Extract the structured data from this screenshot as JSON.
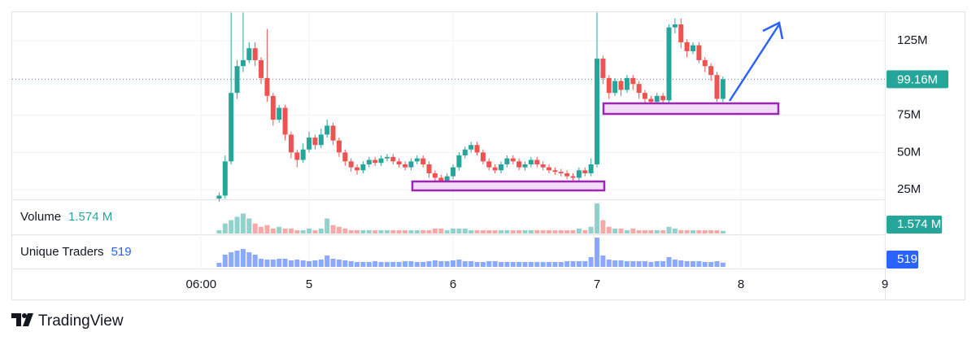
{
  "chart_data": {
    "type": "candlestick",
    "x": [
      9,
      10,
      11,
      12,
      13,
      14,
      15,
      16,
      17,
      18,
      19,
      20,
      21,
      22,
      23,
      24,
      25,
      26,
      27,
      28,
      29,
      30,
      31,
      32,
      33,
      34,
      35,
      36,
      37,
      38,
      39,
      40,
      41,
      42,
      43,
      44,
      45,
      46,
      47,
      48,
      49,
      50,
      51,
      52,
      53,
      54,
      55,
      56,
      57,
      58,
      59,
      60,
      61,
      62,
      63,
      64,
      65,
      66,
      67,
      68,
      69,
      70,
      71,
      72,
      73,
      74,
      75,
      76,
      77,
      78,
      79,
      80,
      81,
      82,
      83,
      84,
      85,
      86,
      87,
      88,
      89,
      90,
      91,
      92,
      93
    ],
    "open": [
      19,
      21,
      44,
      90,
      108,
      112,
      120,
      112,
      100,
      88,
      72,
      80,
      62,
      50,
      45,
      52,
      60,
      55,
      62,
      68,
      58,
      50,
      44,
      40,
      38,
      42,
      45,
      43,
      46,
      47,
      44,
      42,
      40,
      44,
      46,
      42,
      36,
      33,
      31,
      34,
      40,
      48,
      52,
      55,
      50,
      44,
      40,
      38,
      42,
      46,
      44,
      40,
      42,
      45,
      42,
      40,
      38,
      37,
      36,
      34,
      33,
      38,
      36,
      42,
      113,
      100,
      90,
      98,
      92,
      100,
      96,
      90,
      86,
      84,
      88,
      85,
      134,
      136,
      124,
      118,
      122,
      112,
      108,
      102,
      86
    ],
    "high": [
      23,
      48,
      144,
      112,
      144,
      124,
      124,
      114,
      133,
      90,
      82,
      82,
      64,
      52,
      56,
      64,
      62,
      66,
      72,
      70,
      60,
      52,
      46,
      42,
      44,
      47,
      47,
      48,
      49,
      49,
      46,
      44,
      46,
      48,
      48,
      44,
      38,
      35,
      36,
      42,
      50,
      54,
      57,
      57,
      52,
      46,
      42,
      44,
      48,
      48,
      46,
      44,
      47,
      47,
      44,
      42,
      40,
      39,
      38,
      36,
      40,
      40,
      46,
      144,
      115,
      102,
      100,
      100,
      102,
      102,
      98,
      92,
      88,
      90,
      90,
      136,
      140,
      140,
      126,
      124,
      124,
      114,
      110,
      104,
      101
    ],
    "low": [
      17,
      19,
      42,
      86,
      104,
      110,
      108,
      96,
      84,
      68,
      70,
      58,
      46,
      40,
      43,
      50,
      52,
      53,
      60,
      55,
      47,
      41,
      37,
      35,
      36,
      40,
      41,
      41,
      44,
      42,
      40,
      38,
      38,
      42,
      40,
      33,
      30,
      28,
      29,
      32,
      38,
      46,
      50,
      48,
      42,
      38,
      36,
      36,
      40,
      42,
      38,
      38,
      40,
      40,
      38,
      36,
      35,
      34,
      32,
      30,
      31,
      34,
      34,
      40,
      96,
      86,
      88,
      88,
      90,
      92,
      86,
      82,
      80,
      82,
      83,
      83,
      130,
      120,
      114,
      116,
      110,
      104,
      98,
      84,
      84
    ],
    "close": [
      21,
      44,
      90,
      108,
      112,
      120,
      112,
      100,
      88,
      72,
      80,
      62,
      50,
      45,
      52,
      60,
      55,
      62,
      68,
      58,
      50,
      44,
      40,
      38,
      42,
      45,
      43,
      46,
      47,
      44,
      42,
      40,
      44,
      46,
      42,
      36,
      33,
      31,
      34,
      40,
      48,
      52,
      55,
      50,
      44,
      40,
      38,
      42,
      46,
      44,
      40,
      42,
      45,
      42,
      40,
      38,
      37,
      36,
      34,
      33,
      38,
      36,
      42,
      113,
      100,
      90,
      98,
      92,
      100,
      96,
      90,
      86,
      84,
      88,
      85,
      134,
      136,
      124,
      118,
      122,
      112,
      108,
      102,
      86,
      99.16
    ],
    "up_color": "#26a69a",
    "down_color": "#ef5350",
    "xlim": [
      -25.5,
      120
    ],
    "ylim": [
      18.5,
      144.2
    ],
    "xticks": [
      {
        "value": 6,
        "label": "06:00"
      },
      {
        "value": 24,
        "label": "5"
      },
      {
        "value": 48,
        "label": "6"
      },
      {
        "value": 72,
        "label": "7"
      },
      {
        "value": 96,
        "label": "8"
      },
      {
        "value": 120,
        "label": "9"
      }
    ],
    "yticks": [
      {
        "value": 25,
        "label": "25M"
      },
      {
        "value": 50,
        "label": "50M"
      },
      {
        "value": 75,
        "label": "75M"
      },
      {
        "value": 125,
        "label": "125M"
      }
    ],
    "grid": true,
    "last_price": {
      "value": 99.16,
      "label": "99.16M"
    },
    "volume": {
      "name": "Volume",
      "color": "#26a69a",
      "value_label": "1.574 M",
      "values": [
        2,
        6,
        8,
        10,
        12,
        9,
        6,
        4,
        5,
        3,
        4,
        3,
        3,
        2,
        2,
        3,
        2,
        3,
        9,
        5,
        4,
        3,
        2,
        2,
        2,
        2,
        2,
        2,
        2,
        2,
        2,
        2,
        2,
        2,
        2,
        2,
        3,
        3,
        2,
        3,
        3,
        3,
        2,
        2,
        2,
        2,
        2,
        2,
        2,
        2,
        2,
        2,
        2,
        2,
        2,
        2,
        2,
        2,
        2,
        2,
        3,
        2,
        4,
        18,
        8,
        4,
        3,
        3,
        2,
        3,
        2,
        2,
        2,
        2,
        2,
        4,
        3,
        2,
        2,
        2,
        2,
        2,
        2,
        2,
        1.574
      ]
    },
    "traders": {
      "name": "Unique Traders",
      "color": "#2962ff",
      "value_label": "519",
      "values": [
        500,
        1500,
        1800,
        2000,
        2200,
        1800,
        1500,
        1000,
        900,
        900,
        1000,
        1000,
        800,
        900,
        800,
        700,
        800,
        900,
        1400,
        1000,
        900,
        800,
        700,
        600,
        600,
        600,
        700,
        600,
        600,
        600,
        600,
        700,
        700,
        600,
        600,
        700,
        800,
        700,
        700,
        800,
        900,
        700,
        700,
        600,
        600,
        700,
        700,
        600,
        600,
        600,
        600,
        600,
        600,
        600,
        600,
        600,
        600,
        600,
        700,
        700,
        700,
        700,
        1200,
        3600,
        1400,
        900,
        800,
        800,
        700,
        700,
        700,
        700,
        600,
        700,
        700,
        1200,
        900,
        800,
        700,
        700,
        700,
        600,
        600,
        700,
        519
      ]
    }
  },
  "footer": {
    "brand": "TradingView"
  }
}
